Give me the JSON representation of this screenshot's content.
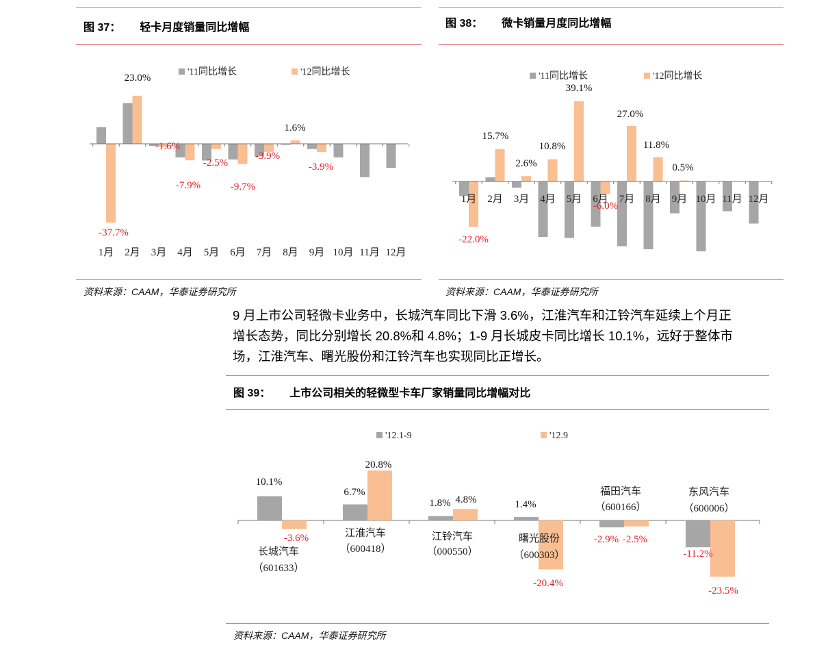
{
  "colors": {
    "gray": "#a6a6a6",
    "orange": "#f9be91",
    "neg_label": "#e4202b",
    "pos_label": "#111111",
    "red_rule": "#d8373c"
  },
  "fig37": {
    "title_num": "图 37：",
    "title_name": "轻卡月度销量同比增幅",
    "source": "资料来源：CAAM，华泰证券研究所"
  },
  "fig38": {
    "title_num": "图 38：",
    "title_name": "微卡销量月度同比增幅",
    "source": "资料来源：CAAM，华泰证券研究所"
  },
  "fig39": {
    "title_num": "图 39：",
    "title_name": "上市公司相关的轻微型卡车厂家销量同比增幅对比",
    "source": "资料来源：CAAM，华泰证券研究所"
  },
  "paragraph": {
    "line1": "9 月上市公司轻微卡业务中，长城汽车同比下滑 3.6%，江淮汽车和江铃汽车延续上个月正",
    "line2": "增长态势，同比分别增长 20.8%和 4.8%；1-9 月长城皮卡同比增长 10.1%，远好于整体市",
    "line3": "场，江淮汽车、曙光股份和江铃汽车也实现同比正增长。"
  },
  "chart_data": [
    {
      "id": "fig37",
      "type": "bar",
      "title": "轻卡月度销量同比增幅",
      "categories": [
        "1月",
        "2月",
        "3月",
        "4月",
        "5月",
        "6月",
        "7月",
        "8月",
        "9月",
        "10月",
        "11月",
        "12月"
      ],
      "series": [
        {
          "name": "'11同比增长",
          "values": [
            8.0,
            19.5,
            -1.0,
            -6.5,
            -8.0,
            -7.5,
            -6.0,
            -0.5,
            -2.5,
            -6.5,
            -16.0,
            -11.5
          ]
        },
        {
          "name": "'12同比增长",
          "values": [
            -37.7,
            23.0,
            -1.6,
            -7.9,
            -2.5,
            -9.7,
            -3.9,
            1.6,
            -3.9,
            null,
            null,
            null
          ]
        }
      ],
      "data_labels": [
        {
          "series": 1,
          "index": 0,
          "text": "-37.7%"
        },
        {
          "series": 1,
          "index": 1,
          "text": "23.0%"
        },
        {
          "series": 1,
          "index": 2,
          "text": "-1.6%"
        },
        {
          "series": 1,
          "index": 3,
          "text": "-7.9%"
        },
        {
          "series": 1,
          "index": 4,
          "text": "-2.5%"
        },
        {
          "series": 1,
          "index": 5,
          "text": "-9.7%"
        },
        {
          "series": 1,
          "index": 6,
          "text": "-3.9%"
        },
        {
          "series": 1,
          "index": 7,
          "text": "1.6%"
        },
        {
          "series": 1,
          "index": 8,
          "text": "-3.9%"
        }
      ],
      "legend_position": "top",
      "grid": false
    },
    {
      "id": "fig38",
      "type": "bar",
      "title": "微卡销量月度同比增幅",
      "categories": [
        "1月",
        "2月",
        "3月",
        "4月",
        "5月",
        "6月",
        "7月",
        "8月",
        "9月",
        "10月",
        "11月",
        "12月"
      ],
      "series": [
        {
          "name": "'11同比增长",
          "values": [
            -7.0,
            2.0,
            -3.0,
            -27.0,
            -27.5,
            -22.0,
            -31.5,
            -33.0,
            -15.5,
            -34.0,
            -14.5,
            -20.5
          ]
        },
        {
          "name": "'12同比增长",
          "values": [
            -22.0,
            15.7,
            2.6,
            10.8,
            39.1,
            -6.0,
            27.0,
            11.8,
            0.5,
            null,
            null,
            null
          ]
        }
      ],
      "data_labels": [
        {
          "series": 1,
          "index": 0,
          "text": "-22.0%"
        },
        {
          "series": 1,
          "index": 1,
          "text": "15.7%"
        },
        {
          "series": 1,
          "index": 2,
          "text": "2.6%"
        },
        {
          "series": 1,
          "index": 3,
          "text": "10.8%"
        },
        {
          "series": 1,
          "index": 4,
          "text": "39.1%"
        },
        {
          "series": 1,
          "index": 5,
          "text": "-6.0%"
        },
        {
          "series": 1,
          "index": 6,
          "text": "27.0%"
        },
        {
          "series": 1,
          "index": 7,
          "text": "11.8%"
        },
        {
          "series": 1,
          "index": 8,
          "text": "0.5%"
        }
      ],
      "legend_position": "top",
      "grid": false
    },
    {
      "id": "fig39",
      "type": "bar",
      "title": "上市公司相关的轻微型卡车厂家销量同比增幅对比",
      "categories": [
        {
          "name": "长城汽车",
          "code": "（601633）"
        },
        {
          "name": "江淮汽车",
          "code": "（600418）"
        },
        {
          "name": "江铃汽车",
          "code": "（000550）"
        },
        {
          "name": "曙光股份",
          "code": "（600303）"
        },
        {
          "name": "福田汽车",
          "code": "（600166）"
        },
        {
          "name": "东风汽车",
          "code": "（600006）"
        }
      ],
      "series": [
        {
          "name": "'12.1-9",
          "values": [
            10.1,
            6.7,
            1.8,
            1.4,
            -2.9,
            -11.2
          ]
        },
        {
          "name": "'12.9",
          "values": [
            -3.6,
            20.8,
            4.8,
            -20.4,
            -2.5,
            -23.5
          ]
        }
      ],
      "labels": [
        [
          "10.1%",
          "6.7%",
          "1.8%",
          "1.4%",
          "-2.9%",
          "-11.2%"
        ],
        [
          "-3.6%",
          "20.8%",
          "4.8%",
          "-20.4%",
          "-2.5%",
          "-23.5%"
        ]
      ],
      "legend_position": "top",
      "grid": false
    }
  ]
}
